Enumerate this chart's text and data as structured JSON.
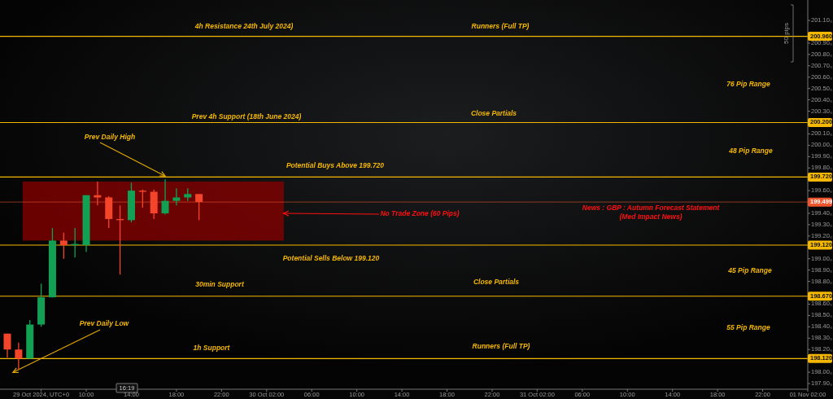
{
  "chart_data": {
    "type": "candlestick",
    "x": [
      "2024-10-29T03:00",
      "2024-10-29T04:00",
      "2024-10-29T05:00",
      "2024-10-29T06:00",
      "2024-10-29T07:00",
      "2024-10-29T08:00",
      "2024-10-29T09:00",
      "2024-10-29T10:00",
      "2024-10-29T11:00",
      "2024-10-29T12:00",
      "2024-10-29T13:00",
      "2024-10-29T14:00",
      "2024-10-29T15:00",
      "2024-10-29T16:00",
      "2024-10-29T17:00",
      "2024-10-29T18:00",
      "2024-10-29T19:00",
      "2024-10-29T20:00"
    ],
    "ohlc": [
      [
        198.34,
        198.34,
        198.13,
        198.2
      ],
      [
        198.2,
        198.26,
        198.02,
        198.12
      ],
      [
        198.12,
        198.46,
        198.12,
        198.42
      ],
      [
        198.42,
        198.78,
        198.4,
        198.66
      ],
      [
        198.66,
        199.27,
        198.66,
        199.16
      ],
      [
        199.16,
        199.23,
        199.0,
        199.12
      ],
      [
        199.12,
        199.27,
        199.01,
        199.13
      ],
      [
        199.12,
        199.56,
        199.06,
        199.56
      ],
      [
        199.56,
        199.68,
        199.47,
        199.54
      ],
      [
        199.54,
        199.55,
        199.27,
        199.35
      ],
      [
        199.35,
        199.47,
        198.86,
        199.34
      ],
      [
        199.34,
        199.67,
        199.32,
        199.6
      ],
      [
        199.6,
        199.61,
        199.45,
        199.59
      ],
      [
        199.59,
        199.61,
        199.35,
        199.4
      ],
      [
        199.4,
        199.7,
        199.39,
        199.51
      ],
      [
        199.51,
        199.62,
        199.47,
        199.54
      ],
      [
        199.54,
        199.62,
        199.51,
        199.57
      ],
      [
        199.57,
        199.57,
        199.34,
        199.5
      ]
    ],
    "xlim": [
      "2024-10-29T02:21",
      "2024-11-01T02:00"
    ],
    "xticks": [
      {
        "value": "2024-10-29T06:00",
        "label": "29 Oct 2024, UTC+0"
      },
      {
        "value": "2024-10-29T10:00",
        "label": "10:00"
      },
      {
        "value": "2024-10-29T14:00",
        "label": "14:00"
      },
      {
        "value": "2024-10-29T18:00",
        "label": "18:00"
      },
      {
        "value": "2024-10-29T22:00",
        "label": "22:00"
      },
      {
        "value": "2024-10-30T02:00",
        "label": "30 Oct 02:00"
      },
      {
        "value": "2024-10-30T06:00",
        "label": "06:00"
      },
      {
        "value": "2024-10-30T10:00",
        "label": "10:00"
      },
      {
        "value": "2024-10-30T14:00",
        "label": "14:00"
      },
      {
        "value": "2024-10-30T18:00",
        "label": "18:00"
      },
      {
        "value": "2024-10-30T22:00",
        "label": "22:00"
      },
      {
        "value": "2024-10-31T02:00",
        "label": "31 Oct 02:00"
      },
      {
        "value": "2024-10-31T06:00",
        "label": "06:00"
      },
      {
        "value": "2024-10-31T10:00",
        "label": "10:00"
      },
      {
        "value": "2024-10-31T14:00",
        "label": "14:00"
      },
      {
        "value": "2024-10-31T18:00",
        "label": "18:00"
      },
      {
        "value": "2024-10-31T22:00",
        "label": "22:00"
      },
      {
        "value": "2024-11-01T02:00",
        "label": "01 Nov 02:00"
      }
    ],
    "ylim": [
      197.85,
      201.28
    ],
    "yticks": [
      {
        "value": 197.9,
        "label": "197.90₀"
      },
      {
        "value": 198.0,
        "label": "198.00₀"
      },
      {
        "value": 198.2,
        "label": "198.20₀"
      },
      {
        "value": 198.3,
        "label": "198.30₀"
      },
      {
        "value": 198.4,
        "label": "198.40₀"
      },
      {
        "value": 198.5,
        "label": "198.50₀"
      },
      {
        "value": 198.6,
        "label": "198.60₀"
      },
      {
        "value": 198.8,
        "label": "198.80₀"
      },
      {
        "value": 198.9,
        "label": "198.90₀"
      },
      {
        "value": 199.0,
        "label": "199.00₀"
      },
      {
        "value": 199.2,
        "label": "199.20₀"
      },
      {
        "value": 199.3,
        "label": "199.30₀"
      },
      {
        "value": 199.4,
        "label": "199.40₀"
      },
      {
        "value": 199.6,
        "label": "199.60₀"
      },
      {
        "value": 199.8,
        "label": "199.80₀"
      },
      {
        "value": 199.9,
        "label": "199.90₀"
      },
      {
        "value": 200.0,
        "label": "200.00₀"
      },
      {
        "value": 200.1,
        "label": "200.10₀"
      },
      {
        "value": 200.3,
        "label": "200.30₀"
      },
      {
        "value": 200.4,
        "label": "200.40₀"
      },
      {
        "value": 200.5,
        "label": "200.50₀"
      },
      {
        "value": 200.6,
        "label": "200.60₀"
      },
      {
        "value": 200.7,
        "label": "200.70₀"
      },
      {
        "value": 200.8,
        "label": "200.80₀"
      },
      {
        "value": 200.9,
        "label": "200.90₀"
      },
      {
        "value": 201.1,
        "label": "201.10₀"
      }
    ],
    "ref_lines": [
      {
        "axis": "y",
        "value": 200.96,
        "label": "200.960",
        "color": "#f5b800"
      },
      {
        "axis": "y",
        "value": 200.2,
        "label": "200.200",
        "color": "#f5b800"
      },
      {
        "axis": "y",
        "value": 199.72,
        "label": "199.720",
        "color": "#f5b800"
      },
      {
        "axis": "y",
        "value": 199.499,
        "label": "199.499",
        "color": "#f0562e"
      },
      {
        "axis": "y",
        "value": 199.12,
        "label": "199.120",
        "color": "#f5b800"
      },
      {
        "axis": "y",
        "value": 198.67,
        "label": "198.670",
        "color": "#f5b800"
      },
      {
        "axis": "y",
        "value": 198.12,
        "label": "198.120",
        "color": "#f5b800"
      }
    ],
    "bands": [
      {
        "axis": "y",
        "from": 199.16,
        "to": 199.68,
        "color": "#8b0000"
      }
    ],
    "annotations": [
      "4h Resistance 24th July 2024)",
      "Runners (Full TP)",
      "Prev 4h Support (18th June 2024)",
      "Close Partials",
      {
        "text": "Prev Daily High",
        "x": "2024-10-29T17:00",
        "y": 199.7
      },
      "Potential Buys Above 199.720",
      {
        "text": "No Trade Zone (60 Pips)",
        "x": "2024-10-30T03:30",
        "y": 199.4
      },
      "News : GBP : Autumn Forecast Statement",
      "(Med Impact News)",
      "Potential Sells Below 199.120",
      "30min Support",
      "Close Partials",
      {
        "text": "Prev Daily Low",
        "x": "2024-10-29T04:00",
        "y": 198.02
      },
      "1h Support",
      "Runners (Full TP)",
      "76 Pip Range",
      "48 Pip Range",
      "45 Pip Range",
      "55 Pip Range",
      "50 pips",
      "16:19"
    ]
  }
}
